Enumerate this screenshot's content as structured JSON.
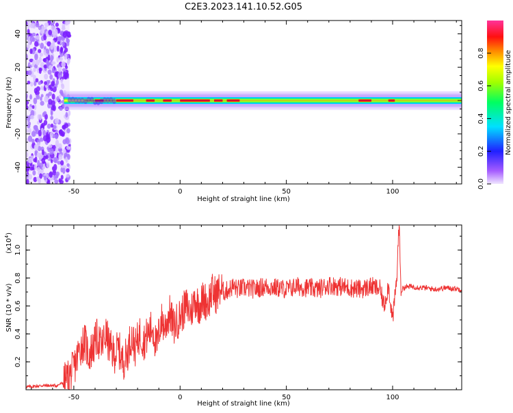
{
  "title": "C2E3.2023.141.10.52.G05",
  "chart_data": [
    {
      "type": "heatmap",
      "xlabel": "Height of straight line (km)",
      "ylabel": "Frequency (Hz)",
      "xlim": [
        -72.5,
        132.5
      ],
      "ylim": [
        -50,
        48
      ],
      "xticks": [
        -50,
        0,
        50,
        100
      ],
      "yticks": [
        -40,
        -20,
        0,
        20,
        40
      ],
      "colorbar": {
        "label": "Normalized spectral amplitude",
        "ticks": [
          "0.0",
          "0.2",
          "0.4",
          "0.6",
          "0.8"
        ],
        "range": [
          0,
          1
        ],
        "colormap": "rainbow (magenta-blue-cyan-green-yellow-red-pink)"
      },
      "description_values": {
        "noise_region_x": [
          -72.5,
          -52
        ],
        "signal_band_center_hz": 0
      }
    },
    {
      "type": "line",
      "xlabel": "Height of straight line (km)",
      "ylabel": "SNR (10 * v/v)",
      "ymultiplier": "(x10",
      "ymultiplier_exp": "4",
      "ymultiplier_close": ")",
      "xlim": [
        -72.5,
        132.5
      ],
      "ylim": [
        0,
        1.18
      ],
      "xticks": [
        -50,
        0,
        50,
        100
      ],
      "yticks": [
        "0.2",
        "0.4",
        "0.6",
        "0.8",
        "1.0"
      ],
      "color": "#ee3333",
      "series": [
        {
          "x": [
            -72,
            -65,
            -58,
            -55,
            -53,
            -51,
            -49,
            -47,
            -45,
            -43,
            -41,
            -39,
            -37,
            -35,
            -33,
            -31,
            -29,
            -27,
            -25,
            -23,
            -21,
            -19,
            -17,
            -15,
            -13,
            -11,
            -9,
            -7,
            -5,
            -3,
            -1,
            1,
            3,
            5,
            7,
            9,
            11,
            13,
            15,
            17,
            19,
            21,
            23,
            25,
            27,
            30,
            35,
            40,
            45,
            50,
            55,
            60,
            65,
            70,
            75,
            80,
            85,
            90,
            94,
            96,
            98,
            100,
            102,
            103,
            104,
            105,
            108,
            115,
            120,
            125,
            132
          ],
          "y": [
            0.02,
            0.03,
            0.03,
            0.05,
            0.08,
            0.12,
            0.2,
            0.3,
            0.35,
            0.25,
            0.3,
            0.38,
            0.3,
            0.4,
            0.3,
            0.25,
            0.3,
            0.2,
            0.25,
            0.38,
            0.3,
            0.4,
            0.35,
            0.4,
            0.45,
            0.3,
            0.5,
            0.45,
            0.55,
            0.45,
            0.5,
            0.55,
            0.6,
            0.55,
            0.65,
            0.6,
            0.65,
            0.62,
            0.7,
            0.68,
            0.72,
            0.7,
            0.72,
            0.74,
            0.72,
            0.73,
            0.72,
            0.74,
            0.73,
            0.72,
            0.74,
            0.73,
            0.72,
            0.75,
            0.74,
            0.73,
            0.72,
            0.74,
            0.72,
            0.6,
            0.75,
            0.5,
            0.8,
            1.2,
            0.7,
            0.73,
            0.74,
            0.73,
            0.72,
            0.73,
            0.72
          ]
        }
      ]
    }
  ]
}
